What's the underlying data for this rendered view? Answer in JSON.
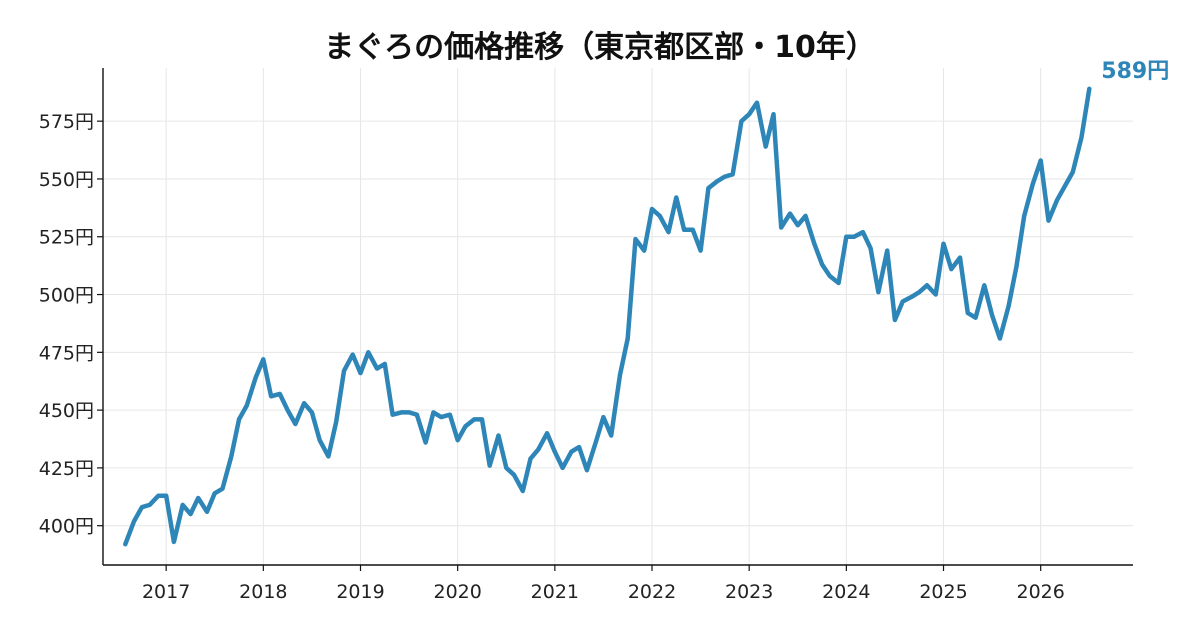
{
  "chart_data": {
    "type": "line",
    "title": "まぐろの価格推移（東京都区部・10年）",
    "xlabel": "",
    "ylabel": "",
    "xlim": [
      2016.35,
      2026.95
    ],
    "ylim": [
      383,
      598
    ],
    "y_ticks": [
      400,
      425,
      450,
      475,
      500,
      525,
      550,
      575
    ],
    "y_tick_labels": [
      "400円",
      "425円",
      "450円",
      "475円",
      "500円",
      "525円",
      "550円",
      "575円"
    ],
    "x_ticks": [
      2017,
      2018,
      2019,
      2020,
      2021,
      2022,
      2023,
      2024,
      2025,
      2026
    ],
    "x_tick_labels": [
      "2017",
      "2018",
      "2019",
      "2020",
      "2021",
      "2022",
      "2023",
      "2024",
      "2025",
      "2026"
    ],
    "grid": true,
    "line_color": "#2e86b8",
    "end_label": "589円",
    "series": [
      {
        "x": [
          2016.58,
          2016.67,
          2016.75,
          2016.83,
          2016.92,
          2017.0,
          2017.08,
          2017.17,
          2017.25,
          2017.33,
          2017.42,
          2017.5,
          2017.58,
          2017.67,
          2017.75,
          2017.83,
          2017.92,
          2018.0,
          2018.08,
          2018.17,
          2018.25,
          2018.33,
          2018.42,
          2018.5,
          2018.58,
          2018.67,
          2018.75,
          2018.83,
          2018.92,
          2019.0,
          2019.08,
          2019.17,
          2019.25,
          2019.33,
          2019.42,
          2019.5,
          2019.58,
          2019.67,
          2019.75,
          2019.83,
          2019.92,
          2020.0,
          2020.08,
          2020.17,
          2020.25,
          2020.33,
          2020.42,
          2020.5,
          2020.58,
          2020.67,
          2020.75,
          2020.83,
          2020.92,
          2021.0,
          2021.08,
          2021.17,
          2021.25,
          2021.33,
          2021.42,
          2021.5,
          2021.58,
          2021.67,
          2021.75,
          2021.83,
          2021.92,
          2022.0,
          2022.08,
          2022.17,
          2022.25,
          2022.33,
          2022.42,
          2022.5,
          2022.58,
          2022.67,
          2022.75,
          2022.83,
          2022.92,
          2023.0,
          2023.08,
          2023.17,
          2023.25,
          2023.33,
          2023.42,
          2023.5,
          2023.58,
          2023.67,
          2023.75,
          2023.83,
          2023.92,
          2024.0,
          2024.08,
          2024.17,
          2024.25,
          2024.33,
          2024.42,
          2024.5,
          2024.58,
          2024.67,
          2024.75,
          2024.83,
          2024.92,
          2025.0,
          2025.08,
          2025.17,
          2025.25,
          2025.33,
          2025.42,
          2025.5,
          2025.58,
          2025.67,
          2025.75,
          2025.83,
          2025.92,
          2026.0,
          2026.08,
          2026.17,
          2026.25,
          2026.33,
          2026.42,
          2026.5
        ],
        "values": [
          392,
          402,
          408,
          409,
          413,
          413,
          393,
          409,
          405,
          412,
          406,
          414,
          416,
          430,
          446,
          452,
          464,
          472,
          456,
          457,
          450,
          444,
          453,
          449,
          437,
          430,
          445,
          467,
          474,
          466,
          475,
          468,
          470,
          448,
          449,
          449,
          448,
          436,
          449,
          447,
          448,
          437,
          443,
          446,
          446,
          426,
          439,
          425,
          422,
          415,
          429,
          433,
          440,
          432,
          425,
          432,
          434,
          424,
          436,
          447,
          439,
          465,
          481,
          524,
          519,
          537,
          534,
          527,
          542,
          528,
          528,
          519,
          546,
          549,
          551,
          552,
          575,
          578,
          583,
          564,
          578,
          529,
          535,
          530,
          534,
          522,
          513,
          508,
          505,
          525,
          525,
          527,
          520,
          501,
          519,
          489,
          497,
          499,
          501,
          504,
          500,
          522,
          511,
          516,
          492,
          490,
          504,
          491,
          481,
          495,
          512,
          534,
          548,
          558,
          532,
          541,
          547,
          553,
          568,
          589
        ]
      }
    ]
  }
}
